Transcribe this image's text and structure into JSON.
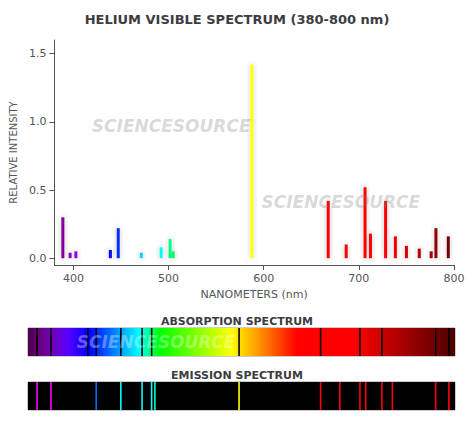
{
  "chart_data": [
    {
      "type": "bar",
      "title": "HELIUM VISIBLE SPECTRUM (380-800 nm)",
      "xlabel": "NANOMETERS (nm)",
      "ylabel": "RELATIVE INTENSITY",
      "x": [
        388.9,
        396.5,
        402.6,
        438.8,
        447.1,
        471.3,
        492.2,
        501.6,
        504.8,
        587.6,
        667.8,
        686.7,
        706.5,
        712.2,
        728.1,
        738.4,
        750.0,
        763.5,
        776.0,
        781.0,
        794.0
      ],
      "values": [
        0.3,
        0.04,
        0.05,
        0.06,
        0.22,
        0.04,
        0.08,
        0.14,
        0.05,
        1.42,
        0.42,
        0.1,
        0.52,
        0.18,
        0.42,
        0.16,
        0.09,
        0.07,
        0.05,
        0.22,
        0.16
      ],
      "xlim": [
        380,
        800
      ],
      "xticks": [
        400,
        500,
        600,
        700,
        800
      ],
      "ylim": [
        -0.05,
        1.6
      ],
      "yticks": [
        {
          "value": 0,
          "label": "0.0"
        },
        0.5,
        {
          "value": 1,
          "label": "1.0"
        },
        1.5
      ],
      "grid": false,
      "annotations": [
        "SCIENCESOURCE",
        "SCIENCESOURCE"
      ]
    },
    {
      "type": "absorption",
      "title": "ABSORPTION SPECTRUM",
      "x": [
        388.9,
        402.6,
        438.8,
        447.1,
        471.3,
        492.2,
        501.6,
        587.6,
        667.8,
        706.5,
        728.1,
        781.0,
        794.0
      ],
      "xlim": [
        380,
        800
      ],
      "tick_labels": false,
      "annotations": [
        "SCIENCESOURCE"
      ]
    },
    {
      "type": "emission",
      "title": "EMISSION SPECTRUM",
      "x": [
        388.9,
        402.6,
        447.1,
        471.3,
        492.2,
        501.6,
        504.8,
        587.6,
        667.8,
        686.7,
        706.5,
        712.2,
        728.1,
        738.4,
        781.0,
        794.0
      ],
      "xlim": [
        380,
        800
      ],
      "tick_labels": false
    }
  ]
}
